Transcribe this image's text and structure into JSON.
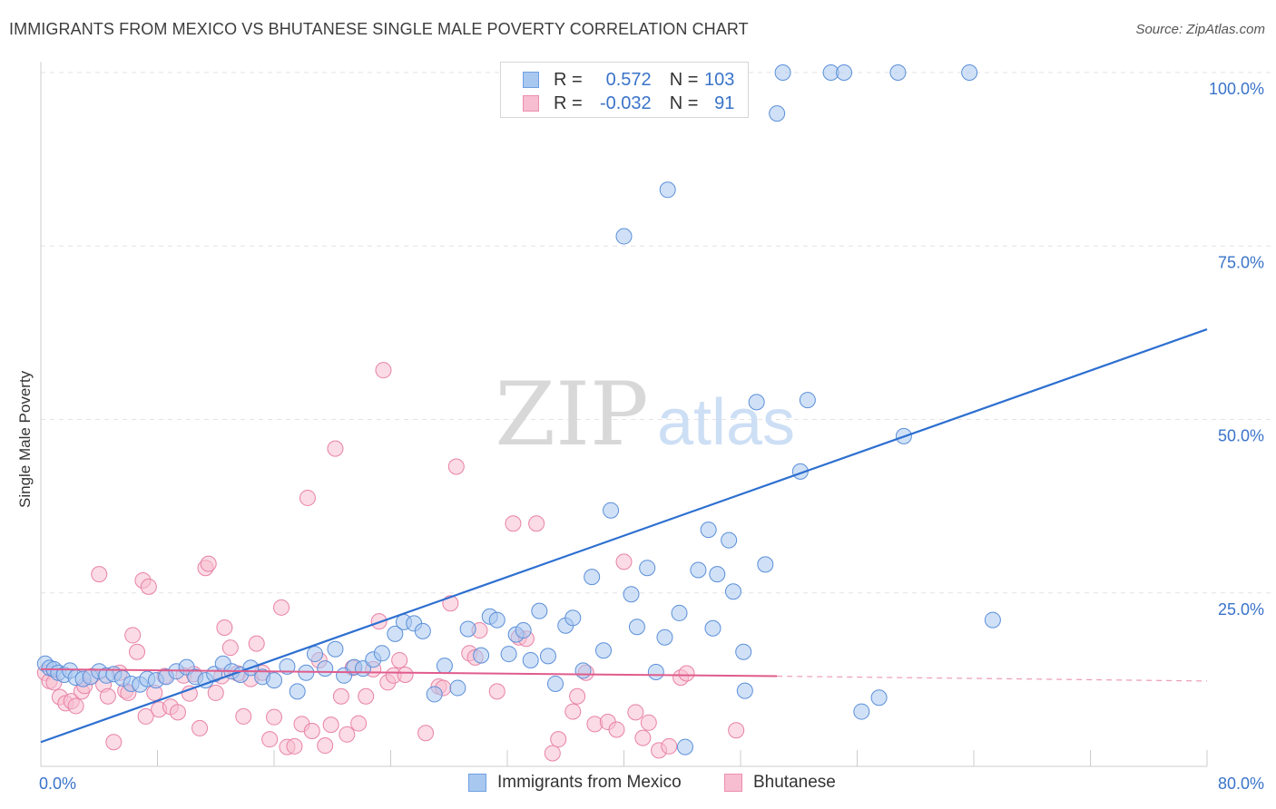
{
  "title": "IMMIGRANTS FROM MEXICO VS BHUTANESE SINGLE MALE POVERTY CORRELATION CHART",
  "source": "Source: ZipAtlas.com",
  "watermark": {
    "zip": "ZIP",
    "atlas": "atlas"
  },
  "legend_stats": {
    "r_label": "R =",
    "n_label": "N =",
    "rows": [
      {
        "r": "0.572",
        "n": "103",
        "color": "#a9c8f0",
        "border": "#6f9fe0"
      },
      {
        "r": "-0.032",
        "n": "91",
        "color": "#f7bdd0",
        "border": "#ec8fae"
      }
    ]
  },
  "chart_data": {
    "type": "scatter",
    "xlabel": "",
    "ylabel": "Single Male Poverty",
    "xlim": [
      0,
      80
    ],
    "ylim": [
      0,
      100
    ],
    "x_tick_labels": [
      "0.0%",
      "80.0%"
    ],
    "y_ticks": [
      25,
      50,
      75,
      100
    ],
    "y_tick_labels": [
      "25.0%",
      "50.0%",
      "75.0%",
      "100.0%"
    ],
    "grid": true,
    "legend_position": "bottom-center",
    "series": [
      {
        "name": "Immigrants from Mexico",
        "color": "#a9c8f0",
        "stroke": "#5b8fd9",
        "trend": {
          "x": [
            0,
            80
          ],
          "y": [
            3.5,
            63
          ],
          "color": "#2d6fd0"
        },
        "points": [
          [
            0.3,
            14.8
          ],
          [
            0.6,
            14.2
          ],
          [
            0.9,
            14
          ],
          [
            1.2,
            13.5
          ],
          [
            1.6,
            13.2
          ],
          [
            2,
            13.8
          ],
          [
            2.4,
            12.8
          ],
          [
            2.9,
            12.6
          ],
          [
            3.4,
            12.9
          ],
          [
            4.0,
            13.7
          ],
          [
            4.5,
            13.1
          ],
          [
            5.0,
            13.3
          ],
          [
            5.6,
            12.7
          ],
          [
            6.2,
            11.9
          ],
          [
            6.8,
            11.8
          ],
          [
            7.3,
            12.6
          ],
          [
            7.9,
            12.4
          ],
          [
            8.6,
            12.9
          ],
          [
            9.3,
            13.7
          ],
          [
            10.0,
            14.3
          ],
          [
            10.6,
            12.9
          ],
          [
            11.3,
            12.4
          ],
          [
            11.9,
            13.3
          ],
          [
            12.5,
            14.8
          ],
          [
            13.1,
            13.7
          ],
          [
            13.7,
            13.2
          ],
          [
            14.4,
            14.2
          ],
          [
            15.2,
            12.9
          ],
          [
            16.0,
            12.4
          ],
          [
            16.9,
            14.4
          ],
          [
            17.6,
            10.8
          ],
          [
            18.2,
            13.5
          ],
          [
            18.8,
            16.2
          ],
          [
            19.5,
            14.1
          ],
          [
            20.2,
            16.9
          ],
          [
            20.8,
            13.1
          ],
          [
            21.5,
            14.3
          ],
          [
            22.1,
            14.1
          ],
          [
            22.8,
            15.4
          ],
          [
            23.4,
            16.3
          ],
          [
            24.3,
            19.1
          ],
          [
            24.9,
            20.8
          ],
          [
            25.6,
            20.6
          ],
          [
            26.2,
            19.5
          ],
          [
            27.0,
            10.4
          ],
          [
            27.7,
            14.5
          ],
          [
            28.6,
            11.3
          ],
          [
            29.3,
            19.8
          ],
          [
            30.2,
            16
          ],
          [
            30.8,
            21.6
          ],
          [
            31.3,
            21.1
          ],
          [
            32.1,
            16.2
          ],
          [
            32.6,
            19
          ],
          [
            33.1,
            19.6
          ],
          [
            33.6,
            15.3
          ],
          [
            34.2,
            22.4
          ],
          [
            34.8,
            15.9
          ],
          [
            35.3,
            11.9
          ],
          [
            36.0,
            20.3
          ],
          [
            36.5,
            21.4
          ],
          [
            37.2,
            13.8
          ],
          [
            37.8,
            27.3
          ],
          [
            38.6,
            16.7
          ],
          [
            39.1,
            36.9
          ],
          [
            40.0,
            76.4
          ],
          [
            40.5,
            24.8
          ],
          [
            40.9,
            20.1
          ],
          [
            41.6,
            28.6
          ],
          [
            42.2,
            13.6
          ],
          [
            42.8,
            18.6
          ],
          [
            43.0,
            83.1
          ],
          [
            43.8,
            22.1
          ],
          [
            44.2,
            2.8
          ],
          [
            45.1,
            28.3
          ],
          [
            45.8,
            34.1
          ],
          [
            46.1,
            19.9
          ],
          [
            46.4,
            27.7
          ],
          [
            47.2,
            32.6
          ],
          [
            47.5,
            25.2
          ],
          [
            48.2,
            16.5
          ],
          [
            48.3,
            10.9
          ],
          [
            49.1,
            52.5
          ],
          [
            49.7,
            29.1
          ],
          [
            50.5,
            94.1
          ],
          [
            50.9,
            100
          ],
          [
            52.1,
            42.5
          ],
          [
            52.6,
            52.8
          ],
          [
            54.2,
            100
          ],
          [
            55.1,
            100
          ],
          [
            56.3,
            7.9
          ],
          [
            57.5,
            9.9
          ],
          [
            58.8,
            100
          ],
          [
            59.2,
            47.6
          ],
          [
            63.7,
            100
          ],
          [
            65.3,
            21.1
          ]
        ]
      },
      {
        "name": "Bhutanese",
        "color": "#f7bdd0",
        "stroke": "#e882a6",
        "trend": {
          "x": [
            0,
            50.5
          ],
          "y": [
            14,
            13
          ],
          "dash_to": [
            80,
            12.3
          ],
          "color": "#e05c8c"
        },
        "points": [
          [
            0.3,
            13.5
          ],
          [
            0.6,
            12.3
          ],
          [
            0.9,
            12.1
          ],
          [
            1.3,
            10
          ],
          [
            1.7,
            9.1
          ],
          [
            2.1,
            9.4
          ],
          [
            2.4,
            8.7
          ],
          [
            2.8,
            10.8
          ],
          [
            3.0,
            11.6
          ],
          [
            3.5,
            13
          ],
          [
            4.0,
            27.7
          ],
          [
            4.3,
            11.8
          ],
          [
            4.6,
            10.1
          ],
          [
            5.0,
            3.5
          ],
          [
            5.4,
            13.5
          ],
          [
            5.8,
            10.9
          ],
          [
            6.0,
            10.6
          ],
          [
            6.3,
            18.9
          ],
          [
            6.6,
            16.5
          ],
          [
            7.0,
            26.8
          ],
          [
            7.2,
            7.2
          ],
          [
            7.4,
            25.9
          ],
          [
            7.8,
            10.6
          ],
          [
            8.1,
            8.2
          ],
          [
            8.5,
            13
          ],
          [
            8.9,
            8.6
          ],
          [
            9.4,
            7.8
          ],
          [
            9.8,
            13.1
          ],
          [
            10.2,
            10.5
          ],
          [
            10.5,
            13.3
          ],
          [
            10.9,
            5.5
          ],
          [
            11.3,
            28.6
          ],
          [
            11.5,
            29.2
          ],
          [
            12.0,
            10.6
          ],
          [
            12.4,
            13
          ],
          [
            12.6,
            20
          ],
          [
            13.0,
            17.1
          ],
          [
            13.5,
            13.4
          ],
          [
            13.9,
            7.2
          ],
          [
            14.4,
            12.6
          ],
          [
            14.8,
            17.7
          ],
          [
            15.2,
            13.5
          ],
          [
            15.7,
            3.9
          ],
          [
            16.0,
            7.1
          ],
          [
            16.5,
            22.9
          ],
          [
            16.9,
            2.8
          ],
          [
            17.4,
            2.9
          ],
          [
            17.9,
            6.1
          ],
          [
            18.3,
            38.7
          ],
          [
            18.6,
            5.1
          ],
          [
            19.1,
            15.3
          ],
          [
            19.5,
            3
          ],
          [
            19.9,
            6
          ],
          [
            20.2,
            45.8
          ],
          [
            20.6,
            10.1
          ],
          [
            21.0,
            4.6
          ],
          [
            21.4,
            14.2
          ],
          [
            21.8,
            6.2
          ],
          [
            22.3,
            10.1
          ],
          [
            22.8,
            14
          ],
          [
            23.2,
            20.9
          ],
          [
            23.5,
            57.1
          ],
          [
            23.8,
            12.1
          ],
          [
            24.2,
            13.1
          ],
          [
            24.6,
            15.3
          ],
          [
            25.0,
            13.2
          ],
          [
            26.4,
            4.8
          ],
          [
            27.3,
            11.5
          ],
          [
            27.6,
            11.3
          ],
          [
            28.1,
            23.5
          ],
          [
            28.5,
            43.2
          ],
          [
            29.4,
            16.3
          ],
          [
            29.8,
            15.7
          ],
          [
            30.1,
            19.6
          ],
          [
            31.3,
            10.8
          ],
          [
            32.4,
            35
          ],
          [
            32.8,
            18.6
          ],
          [
            33.3,
            18.4
          ],
          [
            34.0,
            35
          ],
          [
            35.1,
            1.9
          ],
          [
            35.5,
            3.9
          ],
          [
            36.5,
            7.9
          ],
          [
            36.8,
            10.1
          ],
          [
            37.4,
            13.5
          ],
          [
            38.0,
            6.1
          ],
          [
            38.9,
            6.4
          ],
          [
            39.5,
            5.3
          ],
          [
            40.0,
            29.5
          ],
          [
            40.8,
            7.8
          ],
          [
            41.3,
            4.1
          ],
          [
            41.7,
            6.3
          ],
          [
            42.4,
            2.3
          ],
          [
            43.1,
            2.9
          ],
          [
            43.9,
            12.8
          ],
          [
            44.3,
            13.4
          ],
          [
            47.7,
            5.2
          ]
        ]
      }
    ]
  }
}
